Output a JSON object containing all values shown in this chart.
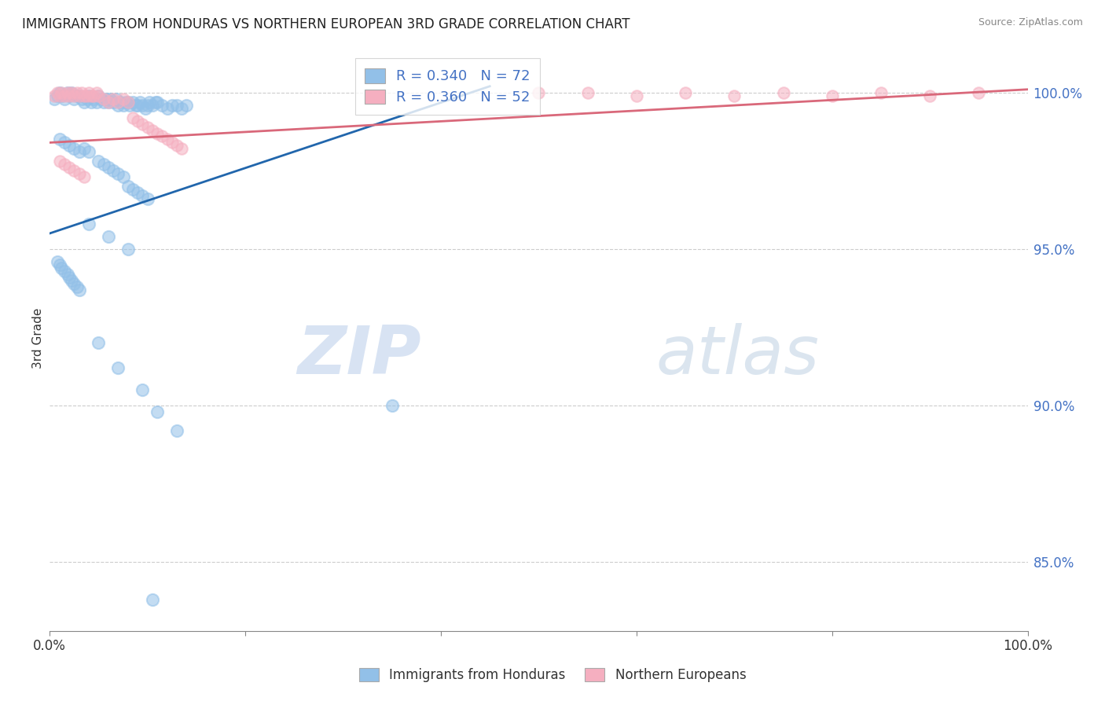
{
  "title": "IMMIGRANTS FROM HONDURAS VS NORTHERN EUROPEAN 3RD GRADE CORRELATION CHART",
  "source": "Source: ZipAtlas.com",
  "ylabel": "3rd Grade",
  "legend_blue_label": "Immigrants from Honduras",
  "legend_pink_label": "Northern Europeans",
  "legend_blue_R": "R = 0.340",
  "legend_blue_N": "N = 72",
  "legend_pink_R": "R = 0.360",
  "legend_pink_N": "N = 52",
  "blue_color": "#92c0e8",
  "pink_color": "#f5afc0",
  "trendline_blue": "#2166ac",
  "trendline_pink": "#d9687a",
  "watermark_zip": "ZIP",
  "watermark_atlas": "atlas",
  "xlim": [
    0.0,
    1.0
  ],
  "ylim": [
    0.828,
    1.015
  ],
  "blue_trend_x0": 0.0,
  "blue_trend_y0": 0.955,
  "blue_trend_x1": 0.45,
  "blue_trend_y1": 1.002,
  "pink_trend_x0": 0.0,
  "pink_trend_y0": 0.984,
  "pink_trend_x1": 1.0,
  "pink_trend_y1": 1.001,
  "blue_scatter_x": [
    0.005,
    0.008,
    0.01,
    0.012,
    0.015,
    0.018,
    0.02,
    0.022,
    0.025,
    0.028,
    0.03,
    0.033,
    0.035,
    0.038,
    0.04,
    0.042,
    0.045,
    0.048,
    0.05,
    0.052,
    0.055,
    0.058,
    0.06,
    0.062,
    0.065,
    0.068,
    0.07,
    0.072,
    0.075,
    0.078,
    0.08,
    0.082,
    0.085,
    0.088,
    0.09,
    0.092,
    0.095,
    0.098,
    0.1,
    0.102,
    0.105,
    0.108,
    0.11,
    0.115,
    0.12,
    0.125,
    0.13,
    0.135,
    0.14,
    0.01,
    0.015,
    0.02,
    0.025,
    0.03,
    0.035,
    0.04,
    0.05,
    0.055,
    0.06,
    0.065,
    0.07,
    0.075,
    0.08,
    0.085,
    0.09,
    0.095,
    0.1,
    0.04,
    0.06,
    0.08,
    0.35
  ],
  "blue_scatter_y": [
    0.998,
    0.999,
    1.0,
    0.999,
    0.998,
    1.0,
    0.999,
    1.0,
    0.998,
    0.999,
    0.999,
    0.998,
    0.997,
    0.998,
    0.999,
    0.997,
    0.998,
    0.997,
    0.999,
    0.998,
    0.997,
    0.998,
    0.997,
    0.998,
    0.997,
    0.998,
    0.996,
    0.997,
    0.996,
    0.997,
    0.997,
    0.996,
    0.997,
    0.996,
    0.996,
    0.997,
    0.996,
    0.995,
    0.996,
    0.997,
    0.996,
    0.997,
    0.997,
    0.996,
    0.995,
    0.996,
    0.996,
    0.995,
    0.996,
    0.985,
    0.984,
    0.983,
    0.982,
    0.981,
    0.982,
    0.981,
    0.978,
    0.977,
    0.976,
    0.975,
    0.974,
    0.973,
    0.97,
    0.969,
    0.968,
    0.967,
    0.966,
    0.958,
    0.954,
    0.95,
    0.9
  ],
  "pink_scatter_x": [
    0.005,
    0.008,
    0.01,
    0.012,
    0.015,
    0.018,
    0.02,
    0.022,
    0.025,
    0.028,
    0.03,
    0.033,
    0.035,
    0.038,
    0.04,
    0.042,
    0.045,
    0.048,
    0.05,
    0.055,
    0.06,
    0.065,
    0.07,
    0.075,
    0.08,
    0.085,
    0.09,
    0.095,
    0.1,
    0.105,
    0.11,
    0.115,
    0.12,
    0.125,
    0.13,
    0.135,
    0.01,
    0.015,
    0.02,
    0.025,
    0.03,
    0.035,
    0.5,
    0.55,
    0.6,
    0.65,
    0.7,
    0.75,
    0.8,
    0.85,
    0.9,
    0.95
  ],
  "pink_scatter_y": [
    0.999,
    1.0,
    0.999,
    1.0,
    0.999,
    1.0,
    0.999,
    1.0,
    0.999,
    1.0,
    0.999,
    1.0,
    0.999,
    0.999,
    1.0,
    0.999,
    0.999,
    1.0,
    0.999,
    0.998,
    0.997,
    0.998,
    0.997,
    0.998,
    0.997,
    0.992,
    0.991,
    0.99,
    0.989,
    0.988,
    0.987,
    0.986,
    0.985,
    0.984,
    0.983,
    0.982,
    0.978,
    0.977,
    0.976,
    0.975,
    0.974,
    0.973,
    1.0,
    1.0,
    0.999,
    1.0,
    0.999,
    1.0,
    0.999,
    1.0,
    0.999,
    1.0
  ],
  "blue_extra_x": [
    0.008,
    0.01,
    0.012,
    0.015,
    0.018,
    0.02,
    0.022,
    0.025,
    0.028,
    0.03
  ],
  "blue_extra_y": [
    0.946,
    0.945,
    0.944,
    0.943,
    0.942,
    0.941,
    0.94,
    0.939,
    0.938,
    0.937
  ],
  "blue_low_x": [
    0.05,
    0.07,
    0.095,
    0.11,
    0.13,
    0.105
  ],
  "blue_low_y": [
    0.92,
    0.912,
    0.905,
    0.898,
    0.892,
    0.838
  ]
}
